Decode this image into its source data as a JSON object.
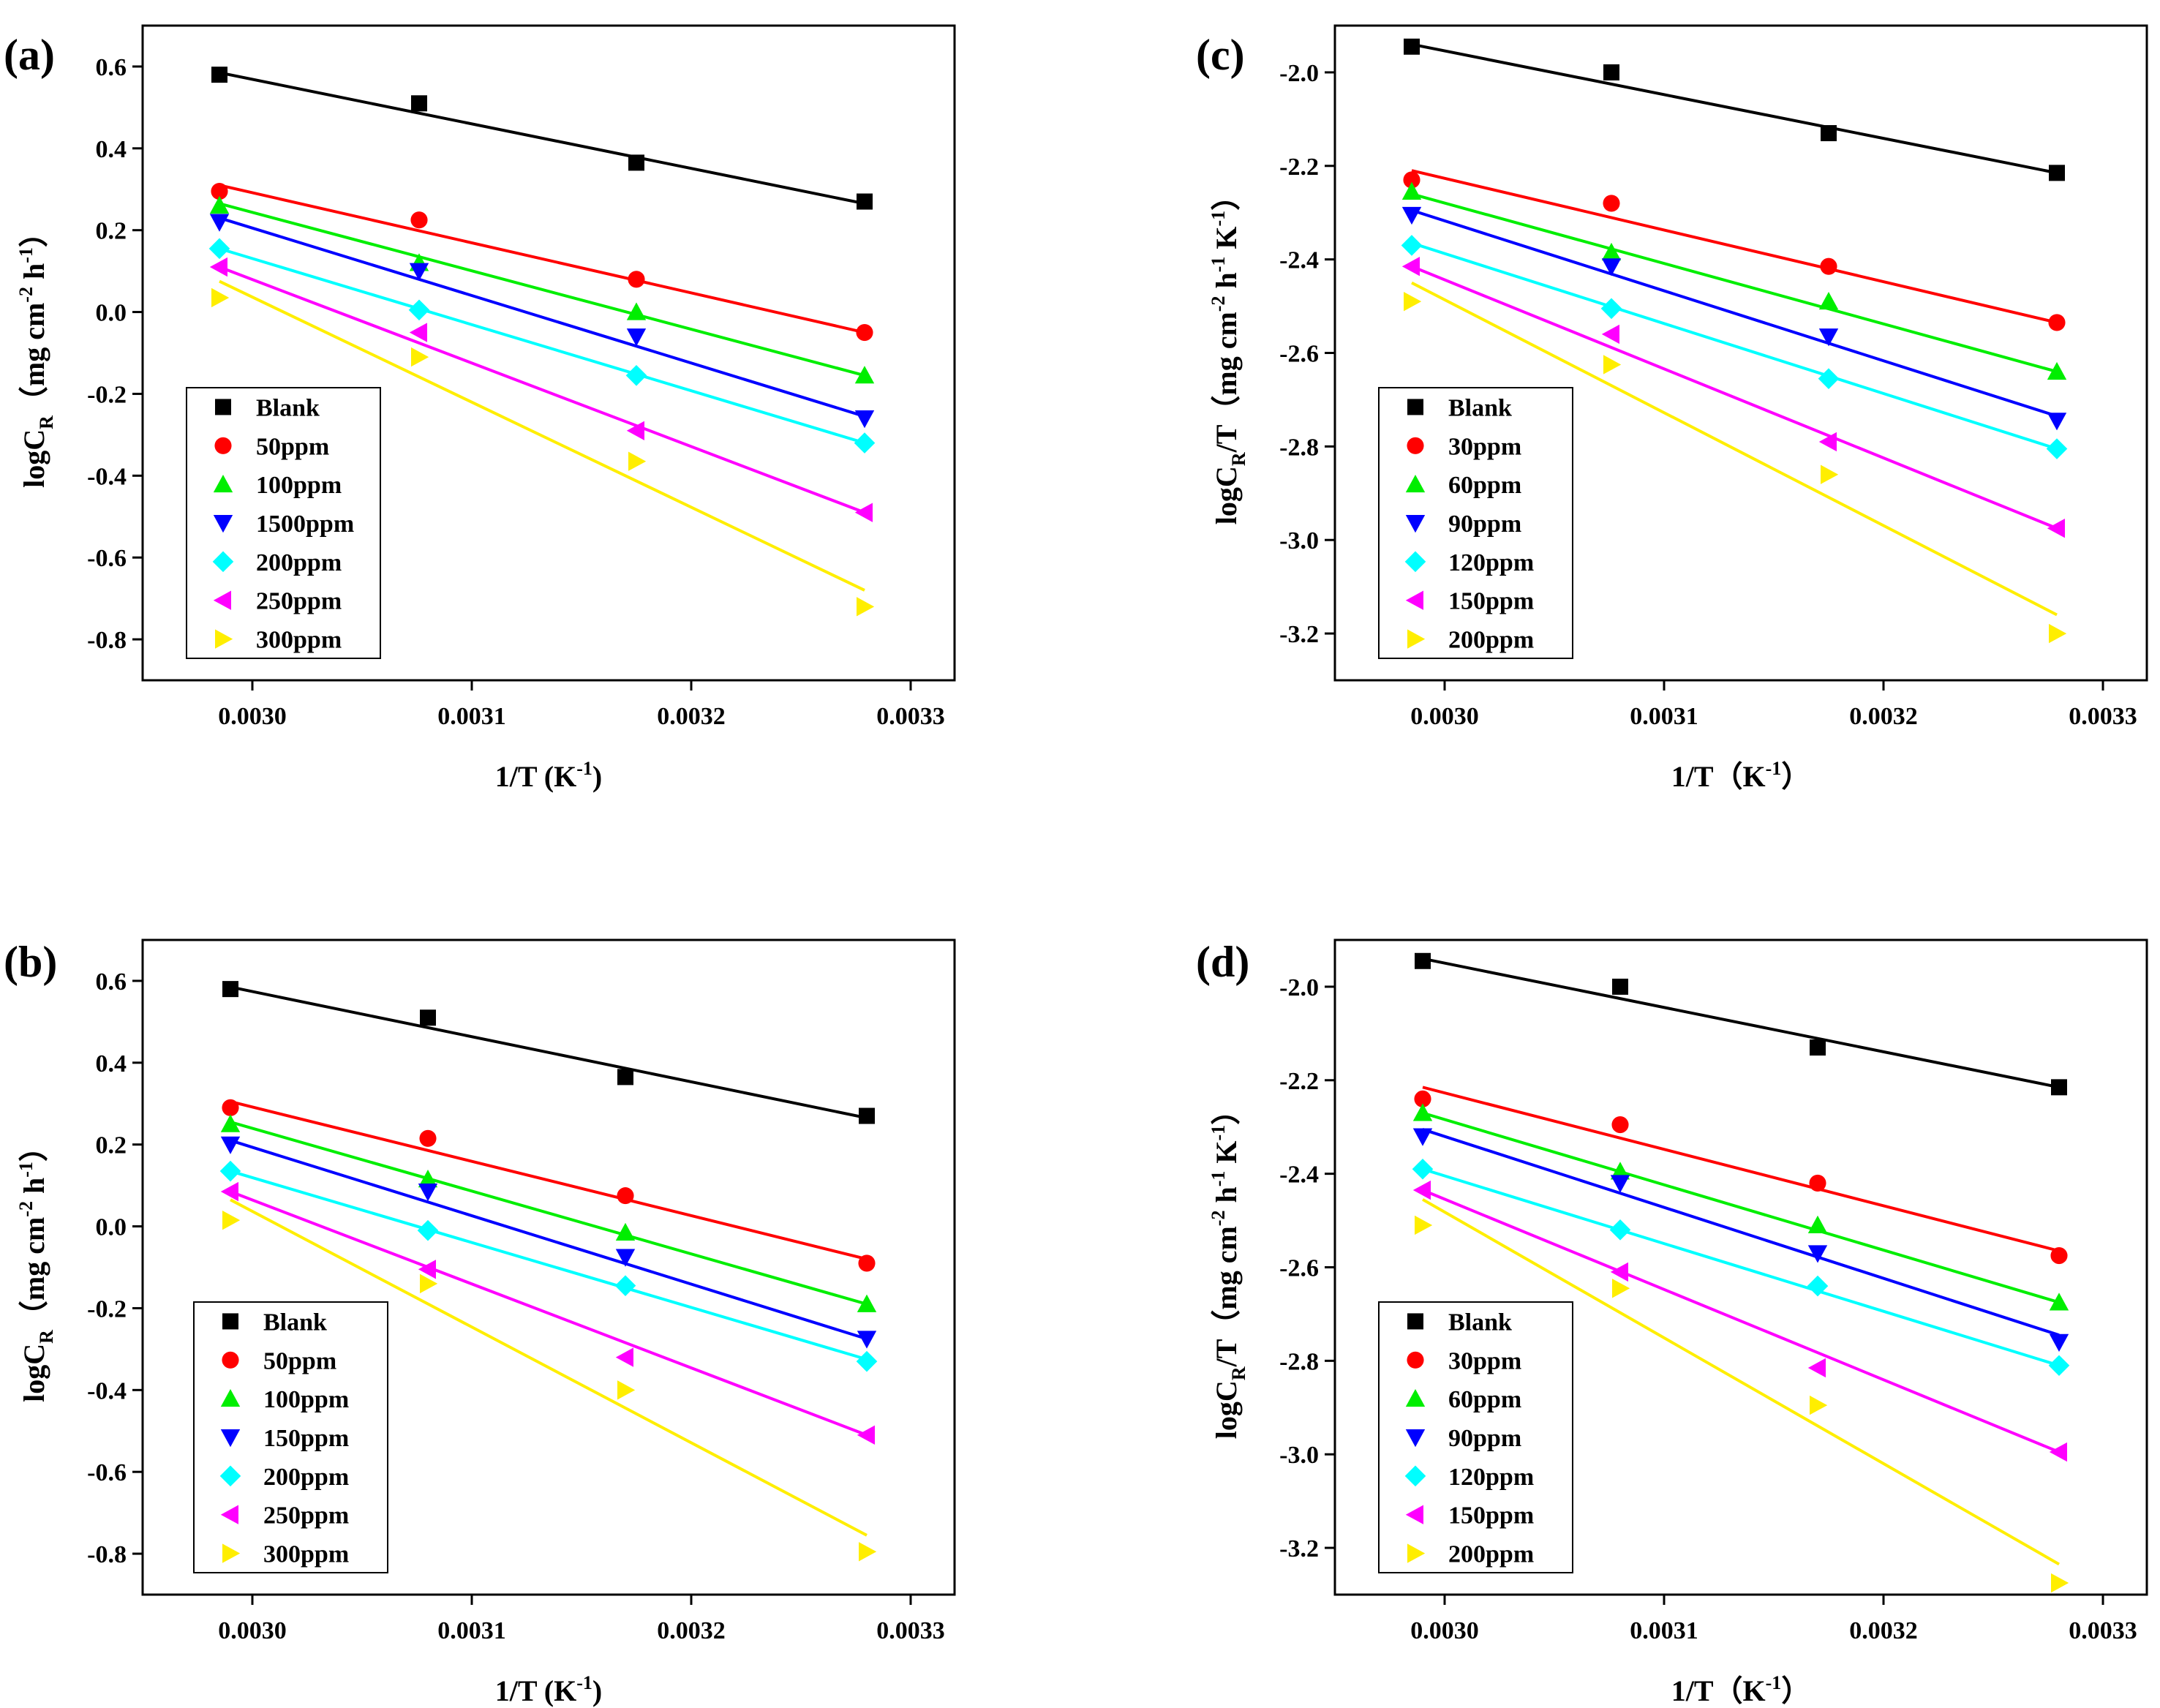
{
  "colors": {
    "s0": "#000000",
    "s1": "#ff0000",
    "s2": "#00ee00",
    "s3": "#0000ff",
    "s4": "#00ffff",
    "s5": "#ff00ff",
    "s6": "#ffee00"
  },
  "chart_data": [
    {
      "panel_label": "(a)",
      "type": "scatter",
      "xlabel": "1/T (K-1)",
      "ylabel": "logCR（mg cm-2 h-1）",
      "xlim": [
        0.00295,
        0.00332
      ],
      "ylim": [
        -0.9,
        0.7
      ],
      "xticks": [
        "0.0030",
        "0.0031",
        "0.0032",
        "0.0033"
      ],
      "yticks": [
        "0.6",
        "0.4",
        "0.2",
        "0.0",
        "-0.2",
        "-0.4",
        "-0.6",
        "-0.8"
      ],
      "legend_position": "bottom-left",
      "series": [
        {
          "name": "Blank",
          "marker": "square",
          "x": [
            0.002985,
            0.003076,
            0.003175,
            0.003279
          ],
          "y": [
            0.58,
            0.51,
            0.365,
            0.27
          ],
          "fit": [
            0.585,
            0.265
          ]
        },
        {
          "name": "50ppm",
          "marker": "circle",
          "x": [
            0.002985,
            0.003076,
            0.003175,
            0.003279
          ],
          "y": [
            0.295,
            0.225,
            0.08,
            -0.05
          ],
          "fit": [
            0.31,
            -0.05
          ]
        },
        {
          "name": "100ppm",
          "marker": "triangle-up",
          "x": [
            0.002985,
            0.003076,
            0.003175,
            0.003279
          ],
          "y": [
            0.26,
            0.12,
            0.0,
            -0.155
          ],
          "fit": [
            0.265,
            -0.155
          ]
        },
        {
          "name": "1500ppm",
          "marker": "triangle-down",
          "x": [
            0.002985,
            0.003076,
            0.003175,
            0.003279
          ],
          "y": [
            0.22,
            0.1,
            -0.06,
            -0.26
          ],
          "fit": [
            0.23,
            -0.255
          ]
        },
        {
          "name": "200ppm",
          "marker": "diamond",
          "x": [
            0.002985,
            0.003076,
            0.003175,
            0.003279
          ],
          "y": [
            0.155,
            0.005,
            -0.155,
            -0.32
          ],
          "fit": [
            0.155,
            -0.32
          ]
        },
        {
          "name": "250ppm",
          "marker": "triangle-left",
          "x": [
            0.002985,
            0.003076,
            0.003175,
            0.003279
          ],
          "y": [
            0.11,
            -0.05,
            -0.29,
            -0.49
          ],
          "fit": [
            0.11,
            -0.49
          ]
        },
        {
          "name": "300ppm",
          "marker": "triangle-right",
          "x": [
            0.002985,
            0.003076,
            0.003175,
            0.003279
          ],
          "y": [
            0.035,
            -0.11,
            -0.365,
            -0.72
          ],
          "fit": [
            0.075,
            -0.68
          ]
        }
      ]
    },
    {
      "panel_label": "(b)",
      "type": "scatter",
      "xlabel": "1/T (K-1)",
      "ylabel": "logCR（mg cm-2 h-1）",
      "xlim": [
        0.00295,
        0.00332
      ],
      "ylim": [
        -0.9,
        0.7
      ],
      "xticks": [
        "0.0030",
        "0.0031",
        "0.0032",
        "0.0033"
      ],
      "yticks": [
        "0.6",
        "0.4",
        "0.2",
        "0.0",
        "-0.2",
        "-0.4",
        "-0.6",
        "-0.8"
      ],
      "legend_position": "bottom-left",
      "series": [
        {
          "name": "Blank",
          "marker": "square",
          "x": [
            0.00299,
            0.00308,
            0.00317,
            0.00328
          ],
          "y": [
            0.58,
            0.51,
            0.365,
            0.27
          ],
          "fit": [
            0.585,
            0.265
          ]
        },
        {
          "name": "50ppm",
          "marker": "circle",
          "x": [
            0.00299,
            0.00308,
            0.00317,
            0.00328
          ],
          "y": [
            0.29,
            0.215,
            0.075,
            -0.09
          ],
          "fit": [
            0.305,
            -0.08
          ]
        },
        {
          "name": "100ppm",
          "marker": "triangle-up",
          "x": [
            0.00299,
            0.00308,
            0.00317,
            0.00328
          ],
          "y": [
            0.25,
            0.115,
            -0.015,
            -0.19
          ],
          "fit": [
            0.255,
            -0.19
          ]
        },
        {
          "name": "150ppm",
          "marker": "triangle-down",
          "x": [
            0.00299,
            0.00308,
            0.00317,
            0.00328
          ],
          "y": [
            0.2,
            0.085,
            -0.075,
            -0.275
          ],
          "fit": [
            0.21,
            -0.275
          ]
        },
        {
          "name": "200ppm",
          "marker": "diamond",
          "x": [
            0.00299,
            0.00308,
            0.00317,
            0.00328
          ],
          "y": [
            0.135,
            -0.01,
            -0.145,
            -0.33
          ],
          "fit": [
            0.135,
            -0.325
          ]
        },
        {
          "name": "250ppm",
          "marker": "triangle-left",
          "x": [
            0.00299,
            0.00308,
            0.00317,
            0.00328
          ],
          "y": [
            0.085,
            -0.105,
            -0.32,
            -0.51
          ],
          "fit": [
            0.085,
            -0.51
          ]
        },
        {
          "name": "300ppm",
          "marker": "triangle-right",
          "x": [
            0.00299,
            0.00308,
            0.00317,
            0.00328
          ],
          "y": [
            0.015,
            -0.14,
            -0.4,
            -0.795
          ],
          "fit": [
            0.065,
            -0.755
          ]
        }
      ]
    },
    {
      "panel_label": "(c)",
      "type": "scatter",
      "xlabel": "1/T（K-1）",
      "ylabel": "logCR/T（mg cm-2 h-1 K-1）",
      "xlim": [
        0.00295,
        0.00332
      ],
      "ylim": [
        -3.3,
        -1.9
      ],
      "xticks": [
        "0.0030",
        "0.0031",
        "0.0032",
        "0.0033"
      ],
      "yticks": [
        "-2.0",
        "-2.2",
        "-2.4",
        "-2.6",
        "-2.8",
        "-3.0",
        "-3.2"
      ],
      "legend_position": "bottom-left",
      "series": [
        {
          "name": "Blank",
          "marker": "square",
          "x": [
            0.002985,
            0.003076,
            0.003175,
            0.003279
          ],
          "y": [
            -1.945,
            -2.0,
            -2.13,
            -2.215
          ],
          "fit": [
            -1.94,
            -2.215
          ]
        },
        {
          "name": "30ppm",
          "marker": "circle",
          "x": [
            0.002985,
            0.003076,
            0.003175,
            0.003279
          ],
          "y": [
            -2.23,
            -2.28,
            -2.415,
            -2.535
          ],
          "fit": [
            -2.21,
            -2.535
          ]
        },
        {
          "name": "60ppm",
          "marker": "triangle-up",
          "x": [
            0.002985,
            0.003076,
            0.003175,
            0.003279
          ],
          "y": [
            -2.255,
            -2.385,
            -2.49,
            -2.64
          ],
          "fit": [
            -2.26,
            -2.64
          ]
        },
        {
          "name": "90ppm",
          "marker": "triangle-down",
          "x": [
            0.002985,
            0.003076,
            0.003175,
            0.003279
          ],
          "y": [
            -2.305,
            -2.415,
            -2.565,
            -2.745
          ],
          "fit": [
            -2.295,
            -2.735
          ]
        },
        {
          "name": "120ppm",
          "marker": "diamond",
          "x": [
            0.002985,
            0.003076,
            0.003175,
            0.003279
          ],
          "y": [
            -2.37,
            -2.505,
            -2.655,
            -2.805
          ],
          "fit": [
            -2.365,
            -2.805
          ]
        },
        {
          "name": "150ppm",
          "marker": "triangle-left",
          "x": [
            0.002985,
            0.003076,
            0.003175,
            0.003279
          ],
          "y": [
            -2.415,
            -2.56,
            -2.79,
            -2.975
          ],
          "fit": [
            -2.415,
            -2.975
          ]
        },
        {
          "name": "200ppm",
          "marker": "triangle-right",
          "x": [
            0.002985,
            0.003076,
            0.003175,
            0.003279
          ],
          "y": [
            -2.49,
            -2.625,
            -2.86,
            -3.2
          ],
          "fit": [
            -2.45,
            -3.16
          ]
        }
      ]
    },
    {
      "panel_label": "(d)",
      "type": "scatter",
      "xlabel": "1/T（K-1）",
      "ylabel": "logCR/T（mg cm-2 h-1 K-1）",
      "xlim": [
        0.00295,
        0.00332
      ],
      "ylim": [
        -3.3,
        -1.9
      ],
      "xticks": [
        "0.0030",
        "0.0031",
        "0.0032",
        "0.0033"
      ],
      "yticks": [
        "-2.0",
        "-2.2",
        "-2.4",
        "-2.6",
        "-2.8",
        "-3.0",
        "-3.2"
      ],
      "legend_position": "bottom-left",
      "series": [
        {
          "name": "Blank",
          "marker": "square",
          "x": [
            0.00299,
            0.00308,
            0.00317,
            0.00328
          ],
          "y": [
            -1.945,
            -2.0,
            -2.13,
            -2.215
          ],
          "fit": [
            -1.94,
            -2.215
          ]
        },
        {
          "name": "30ppm",
          "marker": "circle",
          "x": [
            0.00299,
            0.00308,
            0.00317,
            0.00328
          ],
          "y": [
            -2.24,
            -2.295,
            -2.42,
            -2.575
          ],
          "fit": [
            -2.215,
            -2.565
          ]
        },
        {
          "name": "60ppm",
          "marker": "triangle-up",
          "x": [
            0.00299,
            0.00308,
            0.00317,
            0.00328
          ],
          "y": [
            -2.27,
            -2.395,
            -2.51,
            -2.675
          ],
          "fit": [
            -2.27,
            -2.675
          ]
        },
        {
          "name": "90ppm",
          "marker": "triangle-down",
          "x": [
            0.00299,
            0.00308,
            0.00317,
            0.00328
          ],
          "y": [
            -2.32,
            -2.42,
            -2.57,
            -2.76
          ],
          "fit": [
            -2.305,
            -2.745
          ]
        },
        {
          "name": "120ppm",
          "marker": "diamond",
          "x": [
            0.00299,
            0.00308,
            0.00317,
            0.00328
          ],
          "y": [
            -2.39,
            -2.52,
            -2.64,
            -2.81
          ],
          "fit": [
            -2.39,
            -2.81
          ]
        },
        {
          "name": "150ppm",
          "marker": "triangle-left",
          "x": [
            0.00299,
            0.00308,
            0.00317,
            0.00328
          ],
          "y": [
            -2.435,
            -2.61,
            -2.815,
            -2.995
          ],
          "fit": [
            -2.435,
            -2.995
          ]
        },
        {
          "name": "200ppm",
          "marker": "triangle-right",
          "x": [
            0.00299,
            0.00308,
            0.00317,
            0.00328
          ],
          "y": [
            -2.51,
            -2.645,
            -2.895,
            -3.275
          ],
          "fit": [
            -2.455,
            -3.235
          ]
        }
      ]
    }
  ]
}
